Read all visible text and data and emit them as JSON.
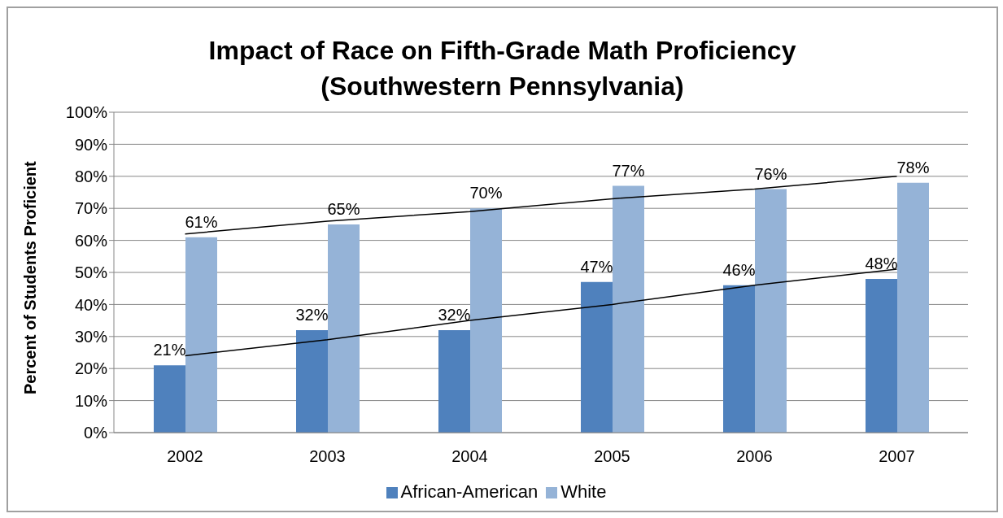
{
  "chart_data": {
    "type": "bar",
    "title": "Impact of Race on Fifth-Grade Math Proficiency\n(Southwestern Pennsylvania)",
    "ylabel": "Percent of Students Proficient",
    "categories": [
      "2002",
      "2003",
      "2004",
      "2005",
      "2006",
      "2007"
    ],
    "series": [
      {
        "name": "African-American",
        "color": "#4f81bd",
        "values": [
          21,
          32,
          32,
          47,
          46,
          48
        ],
        "value_labels": [
          "21%",
          "32%",
          "32%",
          "47%",
          "46%",
          "48%"
        ]
      },
      {
        "name": "White",
        "color": "#95b3d7",
        "values": [
          61,
          65,
          70,
          77,
          76,
          78
        ],
        "value_labels": [
          "61%",
          "65%",
          "70%",
          "77%",
          "76%",
          "78%"
        ]
      },
      {
        "type": "line",
        "color": "#000000",
        "values": [
          24,
          29,
          35,
          40,
          46,
          51
        ]
      },
      {
        "type": "line",
        "color": "#000000",
        "values": [
          62,
          66,
          69,
          73,
          76,
          80
        ]
      }
    ],
    "ylim": [
      0,
      100
    ],
    "yticks": [
      {
        "value": 0,
        "label": "0%"
      },
      {
        "value": 10,
        "label": "10%"
      },
      {
        "value": 20,
        "label": "20%"
      },
      {
        "value": 30,
        "label": "30%"
      },
      {
        "value": 40,
        "label": "40%"
      },
      {
        "value": 50,
        "label": "50%"
      },
      {
        "value": 60,
        "label": "60%"
      },
      {
        "value": 70,
        "label": "70%"
      },
      {
        "value": 80,
        "label": "80%"
      },
      {
        "value": 90,
        "label": "90%"
      },
      {
        "value": 100,
        "label": "100%"
      }
    ],
    "grid": "y",
    "legend": "bottom",
    "marker": "none",
    "line_style": "solid"
  }
}
